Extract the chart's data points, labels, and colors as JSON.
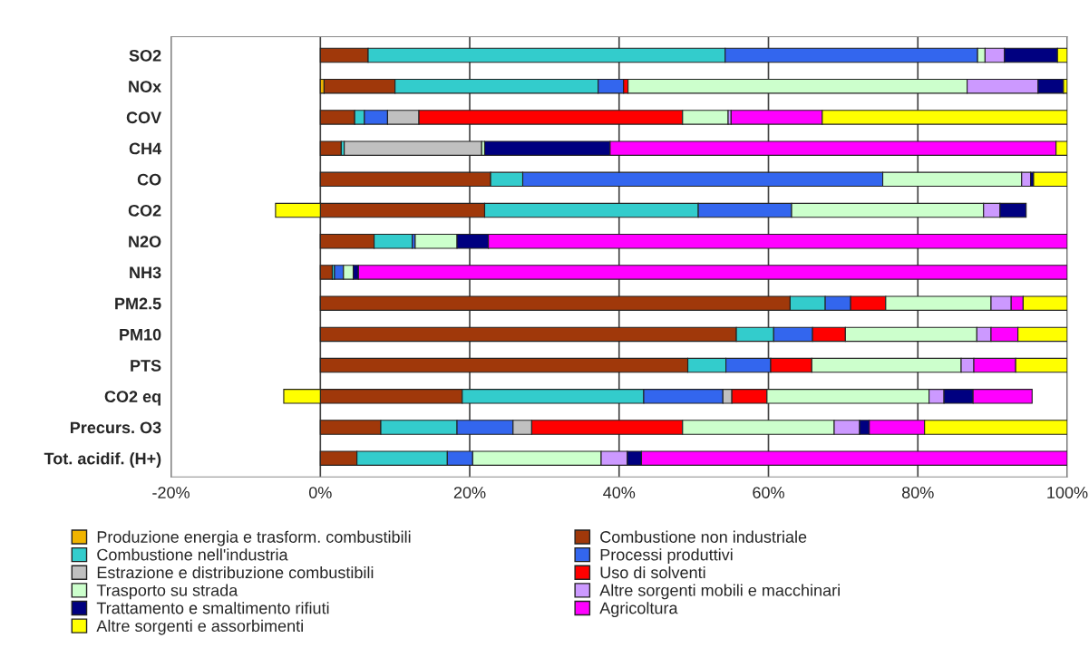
{
  "chart_data": {
    "type": "bar",
    "orientation": "horizontal",
    "stacked": true,
    "categories": [
      "SO2",
      "NOx",
      "COV",
      "CH4",
      "CO",
      "CO2",
      "N2O",
      "NH3",
      "PM2.5",
      "PM10",
      "PTS",
      "CO2 eq",
      "Precurs. O3",
      "Tot. acidif. (H+)"
    ],
    "series": [
      {
        "name": "Produzione energia e trasform. combustibili",
        "color": "#f0b400",
        "values": [
          0,
          0.5,
          0,
          0,
          0,
          0,
          0,
          0,
          0,
          0,
          0,
          0,
          0,
          0
        ]
      },
      {
        "name": "Combustione non industriale",
        "color": "#a0380a",
        "values": [
          6.4,
          9.5,
          4.6,
          2.8,
          22.8,
          22.0,
          7.2,
          1.6,
          62.9,
          55.7,
          49.2,
          19.0,
          8.1,
          4.9
        ]
      },
      {
        "name": "Combustione nell'industria",
        "color": "#33cccc",
        "values": [
          47.8,
          27.2,
          1.3,
          0.4,
          4.3,
          28.6,
          5.1,
          0.3,
          4.7,
          5.0,
          5.1,
          24.3,
          10.2,
          12.1
        ]
      },
      {
        "name": "Processi produttivi",
        "color": "#3366ee",
        "values": [
          33.8,
          3.4,
          3.1,
          0,
          48.2,
          12.5,
          0.4,
          1.2,
          3.4,
          5.2,
          6.0,
          10.6,
          7.5,
          3.4
        ]
      },
      {
        "name": "Estrazione e distribuzione combustibili",
        "color": "#c0c0c0",
        "values": [
          0,
          0,
          4.2,
          18.4,
          0,
          0,
          0,
          0,
          0,
          0,
          0,
          1.2,
          2.5,
          0
        ]
      },
      {
        "name": "Uso di solventi",
        "color": "#ff0000",
        "values": [
          0,
          0.6,
          35.3,
          0,
          0,
          0,
          0,
          0,
          4.7,
          4.4,
          5.5,
          4.7,
          20.2,
          0
        ]
      },
      {
        "name": "Trasporto su strada",
        "color": "#ccffcc",
        "values": [
          1.0,
          45.4,
          6.1,
          0.4,
          18.6,
          25.7,
          5.6,
          1.3,
          14.1,
          17.6,
          20.0,
          21.7,
          20.3,
          17.2
        ]
      },
      {
        "name": "Altre sorgenti mobili e macchinari",
        "color": "#cc99ff",
        "values": [
          2.6,
          9.5,
          0.4,
          0,
          1.2,
          2.2,
          0,
          0,
          2.7,
          1.9,
          1.7,
          2.0,
          3.4,
          3.5
        ]
      },
      {
        "name": "Trattamento e smaltimento rifiuti",
        "color": "#000080",
        "values": [
          7.1,
          3.4,
          0,
          16.8,
          0.4,
          3.5,
          4.2,
          0.7,
          0,
          0,
          0,
          3.9,
          1.3,
          1.9
        ]
      },
      {
        "name": "Agricoltura",
        "color": "#ff00ff",
        "values": [
          0,
          0,
          12.2,
          59.7,
          0,
          0,
          77.5,
          94.9,
          1.6,
          3.6,
          5.6,
          7.9,
          7.4,
          57.0
        ]
      },
      {
        "name": "Altre sorgenti e assorbimenti",
        "color": "#ffff00",
        "values": [
          1.3,
          0.5,
          32.8,
          1.5,
          4.5,
          -6.0,
          0,
          0,
          5.9,
          6.6,
          6.9,
          -4.9,
          19.1,
          0
        ]
      }
    ],
    "xlim": [
      -20,
      100
    ],
    "xticks": [
      {
        "value": -20,
        "label": "-20%"
      },
      {
        "value": 0,
        "label": "0%"
      },
      {
        "value": 20,
        "label": "20%"
      },
      {
        "value": 40,
        "label": "40%"
      },
      {
        "value": 60,
        "label": "60%"
      },
      {
        "value": 80,
        "label": "80%"
      },
      {
        "value": 100,
        "label": "100%"
      }
    ],
    "grid": "x",
    "legend": "bottom"
  }
}
